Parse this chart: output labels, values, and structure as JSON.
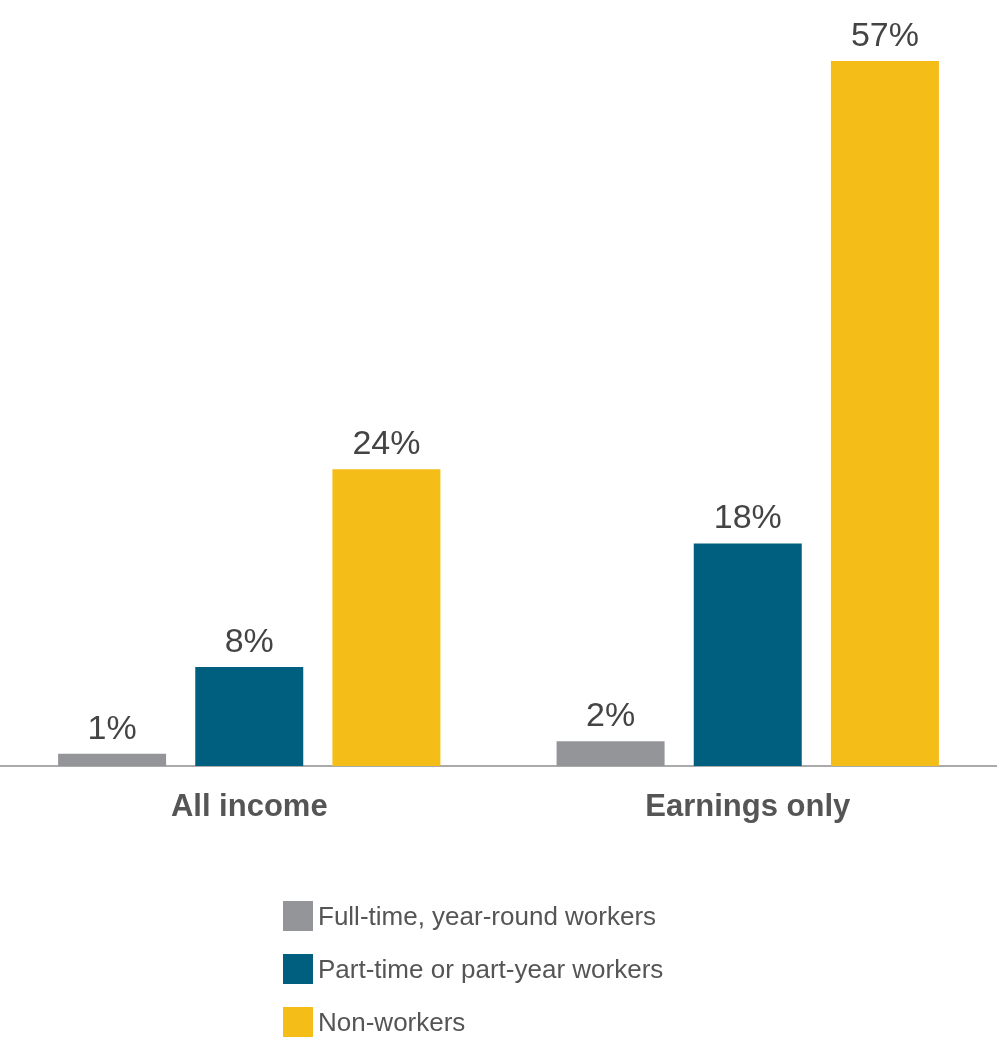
{
  "chart_data": {
    "type": "bar",
    "categories": [
      "All income",
      "Earnings only"
    ],
    "series": [
      {
        "name": "Full-time, year-round workers",
        "color": "#939598",
        "values": [
          1,
          2
        ],
        "value_labels": [
          "1%",
          "2%"
        ]
      },
      {
        "name": "Part-time or part-year workers",
        "color": "#005e7f",
        "values": [
          8,
          18
        ],
        "value_labels": [
          "8%",
          "18%"
        ]
      },
      {
        "name": "Non-workers",
        "color": "#f5bd18",
        "values": [
          24,
          57
        ],
        "value_labels": [
          "24%",
          "57%"
        ]
      }
    ],
    "legend": "bottom"
  }
}
